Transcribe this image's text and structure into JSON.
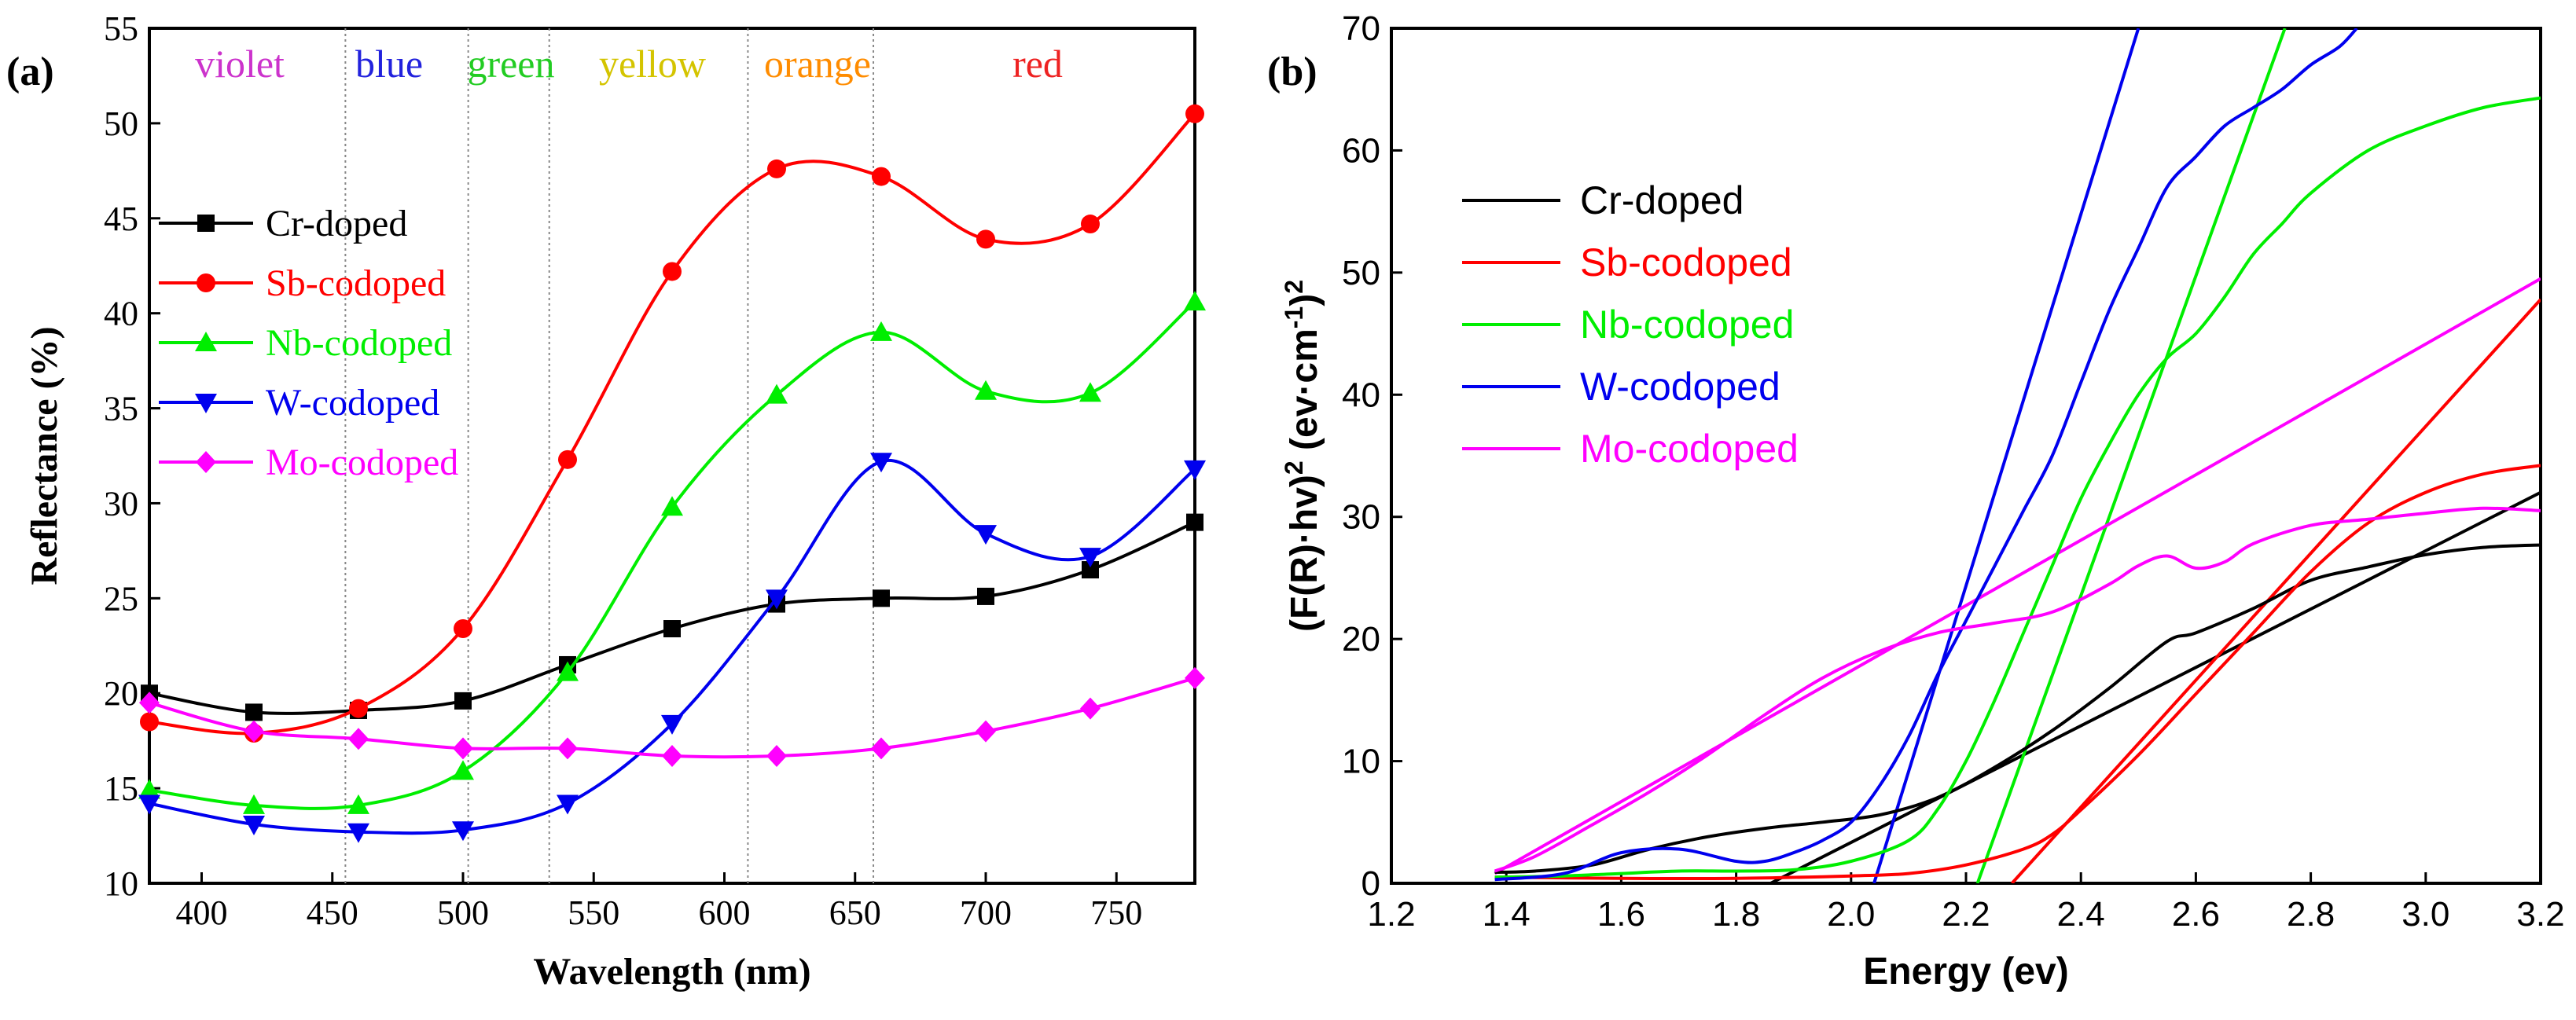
{
  "chart_data": [
    {
      "panel": "(a)",
      "type": "line",
      "xlabel": "Wavelength (nm)",
      "ylabel": "Reflectance (%)",
      "xlim": [
        380,
        780
      ],
      "ylim": [
        10,
        55
      ],
      "xticks": [
        400,
        450,
        500,
        550,
        600,
        650,
        700,
        750
      ],
      "yticks": [
        10,
        15,
        20,
        25,
        30,
        35,
        40,
        45,
        50,
        55
      ],
      "color_bands": [
        {
          "name": "violet",
          "color": "#cc33cc"
        },
        {
          "name": "blue",
          "color": "#2222dd"
        },
        {
          "name": "green",
          "color": "#22cc22"
        },
        {
          "name": "yellow",
          "color": "#d4c400"
        },
        {
          "name": "orange",
          "color": "#ff8c00"
        },
        {
          "name": "red",
          "color": "#ee2222"
        }
      ],
      "band_boundaries": [
        455,
        502,
        533,
        609,
        657
      ],
      "x": [
        380,
        420,
        460,
        500,
        540,
        580,
        620,
        660,
        700,
        740,
        780
      ],
      "series": [
        {
          "name": "Cr-doped",
          "color": "#000000",
          "marker": "square",
          "values": [
            20.0,
            19.0,
            19.1,
            19.6,
            21.5,
            23.4,
            24.7,
            25.0,
            25.1,
            26.5,
            29.0
          ]
        },
        {
          "name": "Sb-codoped",
          "color": "#ff0000",
          "marker": "circle",
          "values": [
            18.5,
            17.9,
            19.2,
            23.4,
            32.3,
            42.2,
            47.6,
            47.2,
            43.9,
            44.7,
            50.5
          ]
        },
        {
          "name": "Nb-codoped",
          "color": "#00ee00",
          "marker": "triangle-up",
          "values": [
            14.9,
            14.1,
            14.1,
            15.9,
            21.1,
            29.8,
            35.7,
            39.0,
            35.9,
            35.8,
            40.6
          ]
        },
        {
          "name": "W-codoped",
          "color": "#0000ee",
          "marker": "triangle-down",
          "values": [
            14.2,
            13.1,
            12.7,
            12.8,
            14.2,
            18.4,
            25.0,
            32.2,
            28.4,
            27.2,
            31.8
          ]
        },
        {
          "name": "Mo-codoped",
          "color": "#ff00ff",
          "marker": "diamond",
          "values": [
            19.5,
            18.0,
            17.6,
            17.1,
            17.1,
            16.7,
            16.7,
            17.1,
            18.0,
            19.2,
            20.8
          ]
        }
      ]
    },
    {
      "panel": "(b)",
      "type": "line",
      "xlabel": "Energy (ev)",
      "ylabel": "(F(R)·hv)² (ev·cm⁻¹)²",
      "ylabel_main": "(F(R)·hv)",
      "ylabel_sup1": "2",
      "ylabel_mid": " (ev·cm",
      "ylabel_sup2": "-1",
      "ylabel_end": ")",
      "ylabel_sup3": "2",
      "xlim": [
        1.2,
        3.2
      ],
      "ylim": [
        0,
        70
      ],
      "xticks": [
        "1.2",
        "1.4",
        "1.6",
        "1.8",
        "2.0",
        "2.2",
        "2.4",
        "2.6",
        "2.8",
        "3.0",
        "3.2"
      ],
      "yticks": [
        "0",
        "10",
        "20",
        "30",
        "40",
        "50",
        "60",
        "70"
      ],
      "series": [
        {
          "name": "Cr-doped",
          "color": "#000000",
          "x": [
            1.38,
            1.45,
            1.55,
            1.65,
            1.75,
            1.85,
            1.95,
            2.05,
            2.15,
            2.25,
            2.35,
            2.45,
            2.55,
            2.6,
            2.7,
            2.8,
            2.9,
            3.0,
            3.1,
            3.2
          ],
          "y": [
            0.9,
            1.0,
            1.5,
            2.8,
            3.8,
            4.5,
            5.0,
            5.6,
            7.0,
            9.5,
            12.5,
            16.0,
            19.8,
            20.5,
            22.5,
            24.8,
            25.9,
            26.9,
            27.5,
            27.7
          ]
        },
        {
          "name": "Sb-codoped",
          "color": "#ff0000",
          "x": [
            1.38,
            1.6,
            1.8,
            2.0,
            2.1,
            2.2,
            2.3,
            2.35,
            2.4,
            2.5,
            2.6,
            2.7,
            2.8,
            2.9,
            3.0,
            3.1,
            3.2
          ],
          "y": [
            0.5,
            0.4,
            0.4,
            0.6,
            0.8,
            1.5,
            2.8,
            4.0,
            6.0,
            10.5,
            15.5,
            20.5,
            25.5,
            29.5,
            32.0,
            33.5,
            34.2
          ]
        },
        {
          "name": "Nb-codoped",
          "color": "#00ee00",
          "x": [
            1.38,
            1.5,
            1.6,
            1.7,
            1.8,
            1.9,
            2.0,
            2.1,
            2.15,
            2.2,
            2.25,
            2.3,
            2.35,
            2.4,
            2.45,
            2.5,
            2.55,
            2.6,
            2.65,
            2.7,
            2.75,
            2.8,
            2.9,
            3.0,
            3.1,
            3.2
          ],
          "y": [
            0.5,
            0.6,
            0.8,
            1.0,
            1.0,
            1.1,
            1.8,
            3.5,
            6.0,
            10.0,
            15.0,
            20.5,
            26.0,
            31.5,
            36.0,
            40.0,
            43.0,
            45.0,
            48.0,
            51.5,
            54.0,
            56.5,
            60.0,
            62.0,
            63.5,
            64.3
          ]
        },
        {
          "name": "W-codoped",
          "color": "#0000ee",
          "x": [
            1.38,
            1.5,
            1.6,
            1.7,
            1.8,
            1.85,
            1.9,
            1.95,
            2.0,
            2.05,
            2.1,
            2.15,
            2.2,
            2.25,
            2.3,
            2.35,
            2.4,
            2.45,
            2.5,
            2.55,
            2.6,
            2.65,
            2.7,
            2.75,
            2.8,
            2.85,
            2.88
          ],
          "y": [
            0.3,
            0.8,
            2.5,
            2.8,
            1.8,
            1.8,
            2.5,
            3.5,
            5.0,
            8.0,
            12.0,
            17.0,
            21.5,
            26.0,
            30.5,
            35.0,
            41.0,
            47.0,
            52.0,
            57.0,
            59.5,
            62.0,
            63.5,
            65.0,
            67.0,
            68.5,
            70.0
          ]
        },
        {
          "name": "Mo-codoped",
          "color": "#ff00ff",
          "x": [
            1.38,
            1.45,
            1.55,
            1.65,
            1.75,
            1.85,
            1.95,
            2.05,
            2.15,
            2.25,
            2.35,
            2.45,
            2.5,
            2.55,
            2.6,
            2.65,
            2.7,
            2.8,
            2.9,
            3.0,
            3.1,
            3.2
          ],
          "y": [
            1.0,
            2.2,
            4.8,
            7.5,
            10.5,
            13.8,
            16.8,
            19.0,
            20.5,
            21.3,
            22.2,
            24.5,
            26.0,
            26.8,
            25.8,
            26.3,
            27.8,
            29.3,
            29.8,
            30.3,
            30.7,
            30.5
          ]
        }
      ],
      "fit_lines": [
        {
          "series": "Cr-doped",
          "color": "#000000",
          "x": [
            1.86,
            3.2
          ],
          "y": [
            0,
            32
          ]
        },
        {
          "series": "Sb-codoped",
          "color": "#ff0000",
          "x": [
            2.28,
            3.2
          ],
          "y": [
            0,
            47.8
          ]
        },
        {
          "series": "Nb-codoped",
          "color": "#00ee00",
          "x": [
            2.22,
            2.755
          ],
          "y": [
            0,
            70
          ]
        },
        {
          "series": "W-codoped",
          "color": "#0000ee",
          "x": [
            2.04,
            2.5
          ],
          "y": [
            0,
            70
          ]
        },
        {
          "series": "Mo-codoped",
          "color": "#ff00ff",
          "x": [
            1.38,
            3.2
          ],
          "y": [
            0.8,
            49.5
          ]
        }
      ]
    }
  ]
}
